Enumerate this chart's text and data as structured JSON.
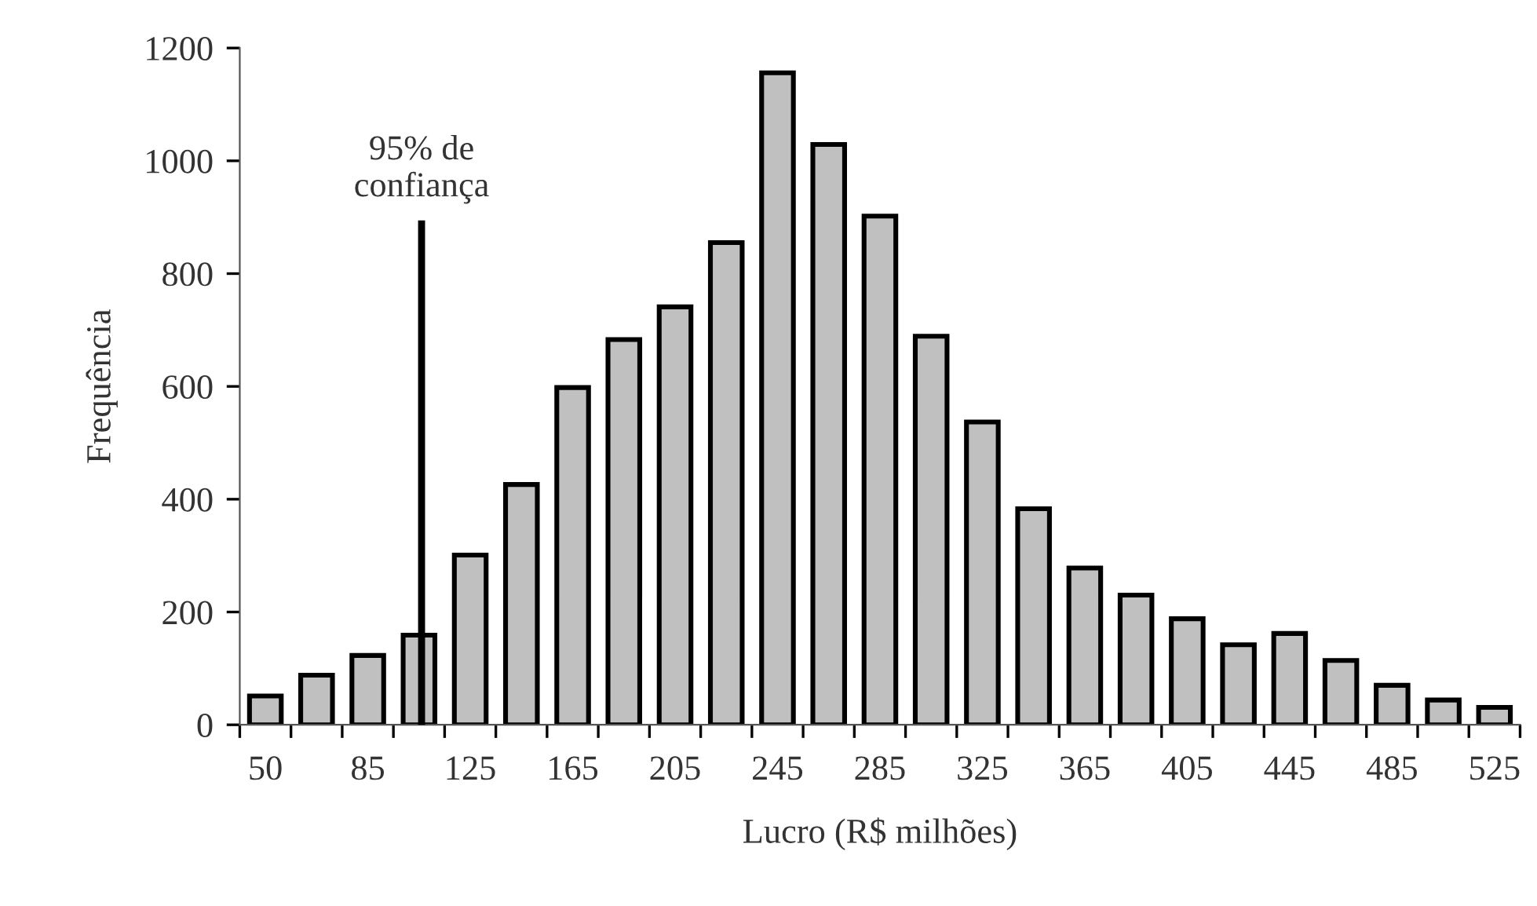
{
  "chart_data": {
    "type": "bar",
    "xlabel": "Lucro (R$ milhões)",
    "ylabel": "Frequência",
    "categories": [
      "50",
      null,
      "85",
      null,
      "125",
      null,
      "165",
      null,
      "205",
      null,
      "245",
      null,
      "285",
      null,
      "325",
      null,
      "365",
      null,
      "405",
      null,
      "445",
      null,
      "485",
      null,
      "525"
    ],
    "values": [
      51,
      88,
      123,
      159,
      301,
      426,
      598,
      683,
      741,
      855,
      1156,
      1029,
      902,
      689,
      537,
      383,
      278,
      230,
      188,
      142,
      162,
      114,
      70,
      44,
      31
    ],
    "color": "#c0c0c0",
    "ylim": [
      0,
      1200
    ],
    "yticks": [
      0,
      200,
      400,
      600,
      800,
      1000,
      1200
    ],
    "annotations": [
      "95% de\nconfiança"
    ]
  }
}
